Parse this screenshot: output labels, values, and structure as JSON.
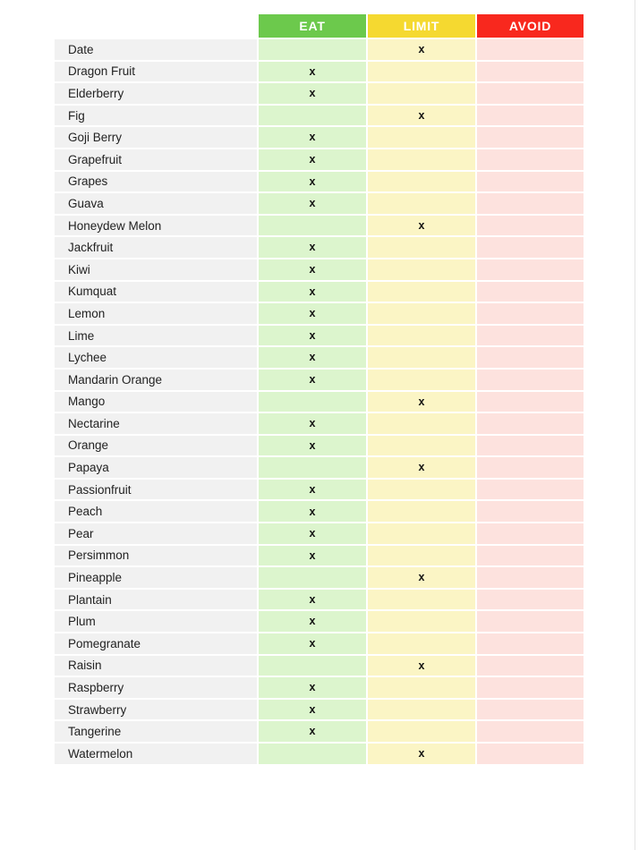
{
  "page": {
    "background": "#FFFFFF"
  },
  "colors": {
    "header_eat": "#6CC94C",
    "header_limit": "#F5D930",
    "header_avoid": "#F8281E",
    "cell_eat": "#DCF5CD",
    "cell_limit": "#FBF5C5",
    "cell_avoid": "#FDE2DE",
    "label_bg": "#F1F1F1",
    "header_text": "#FFFFFF",
    "label_text": "#222222",
    "mark_color": "#111111",
    "page_edge": "#E3E3E3"
  },
  "table": {
    "mark": "x",
    "headers": [
      {
        "id": "eat",
        "label": "EAT"
      },
      {
        "id": "limit",
        "label": "LIMIT"
      },
      {
        "id": "avoid",
        "label": "AVOID"
      }
    ],
    "rows": [
      {
        "name": "Date",
        "category": "limit"
      },
      {
        "name": "Dragon Fruit",
        "category": "eat"
      },
      {
        "name": "Elderberry",
        "category": "eat"
      },
      {
        "name": "Fig",
        "category": "limit"
      },
      {
        "name": "Goji Berry",
        "category": "eat"
      },
      {
        "name": "Grapefruit",
        "category": "eat"
      },
      {
        "name": "Grapes",
        "category": "eat"
      },
      {
        "name": "Guava",
        "category": "eat"
      },
      {
        "name": "Honeydew Melon",
        "category": "limit"
      },
      {
        "name": "Jackfruit",
        "category": "eat"
      },
      {
        "name": "Kiwi",
        "category": "eat"
      },
      {
        "name": "Kumquat",
        "category": "eat"
      },
      {
        "name": "Lemon",
        "category": "eat"
      },
      {
        "name": "Lime",
        "category": "eat"
      },
      {
        "name": "Lychee",
        "category": "eat"
      },
      {
        "name": "Mandarin Orange",
        "category": "eat"
      },
      {
        "name": "Mango",
        "category": "limit"
      },
      {
        "name": "Nectarine",
        "category": "eat"
      },
      {
        "name": "Orange",
        "category": "eat"
      },
      {
        "name": "Papaya",
        "category": "limit"
      },
      {
        "name": "Passionfruit",
        "category": "eat"
      },
      {
        "name": "Peach",
        "category": "eat"
      },
      {
        "name": "Pear",
        "category": "eat"
      },
      {
        "name": "Persimmon",
        "category": "eat"
      },
      {
        "name": "Pineapple",
        "category": "limit"
      },
      {
        "name": "Plantain",
        "category": "eat"
      },
      {
        "name": "Plum",
        "category": "eat"
      },
      {
        "name": "Pomegranate",
        "category": "eat"
      },
      {
        "name": "Raisin",
        "category": "limit"
      },
      {
        "name": "Raspberry",
        "category": "eat"
      },
      {
        "name": "Strawberry",
        "category": "eat"
      },
      {
        "name": "Tangerine",
        "category": "eat"
      },
      {
        "name": "Watermelon",
        "category": "limit"
      }
    ]
  }
}
